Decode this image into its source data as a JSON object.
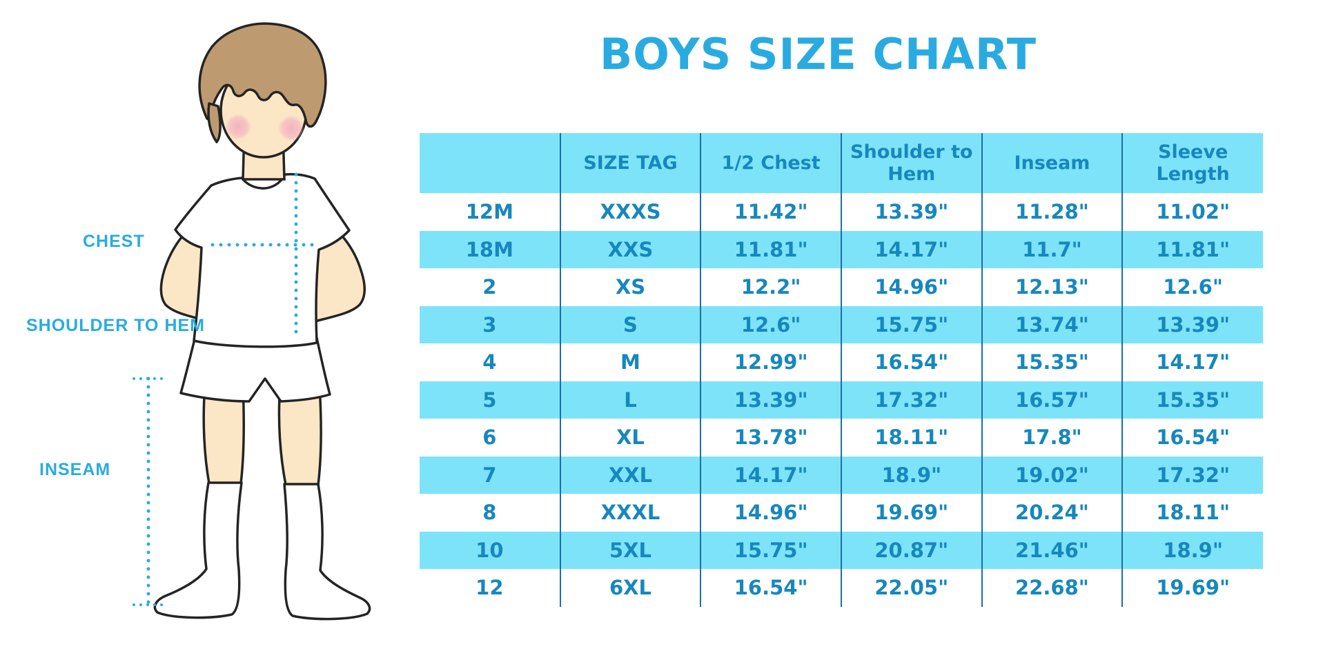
{
  "title": "BOYS SIZE CHART",
  "figure_labels": {
    "chest": "CHEST",
    "shoulder_to_hem": "SHOULDER TO HEM",
    "inseam": "INSEAM"
  },
  "colors": {
    "accent": "#29ABE2",
    "band_blue": "#7DE3F9",
    "table_text": "#1787BE",
    "column_border": "#1A6FA5"
  },
  "chart_data": {
    "type": "table",
    "title": "BOYS SIZE CHART",
    "columns": [
      "",
      "SIZE TAG",
      "1/2 Chest",
      "Shoulder to Hem",
      "Inseam",
      "Sleeve Length"
    ],
    "rows": [
      [
        "12M",
        "XXXS",
        "11.42\"",
        "13.39\"",
        "11.28\"",
        "11.02\""
      ],
      [
        "18M",
        "XXS",
        "11.81\"",
        "14.17\"",
        "11.7\"",
        "11.81\""
      ],
      [
        "2",
        "XS",
        "12.2\"",
        "14.96\"",
        "12.13\"",
        "12.6\""
      ],
      [
        "3",
        "S",
        "12.6\"",
        "15.75\"",
        "13.74\"",
        "13.39\""
      ],
      [
        "4",
        "M",
        "12.99\"",
        "16.54\"",
        "15.35\"",
        "14.17\""
      ],
      [
        "5",
        "L",
        "13.39\"",
        "17.32\"",
        "16.57\"",
        "15.35\""
      ],
      [
        "6",
        "XL",
        "13.78\"",
        "18.11\"",
        "17.8\"",
        "16.54\""
      ],
      [
        "7",
        "XXL",
        "14.17\"",
        "18.9\"",
        "19.02\"",
        "17.32\""
      ],
      [
        "8",
        "XXXL",
        "14.96\"",
        "19.69\"",
        "20.24\"",
        "18.11\""
      ],
      [
        "10",
        "5XL",
        "15.75\"",
        "20.87\"",
        "21.46\"",
        "18.9\""
      ],
      [
        "12",
        "6XL",
        "16.54\"",
        "22.05\"",
        "22.68\"",
        "19.69\""
      ]
    ],
    "row_striping": "white and light-blue alternating, header light-blue",
    "units": "inches"
  }
}
